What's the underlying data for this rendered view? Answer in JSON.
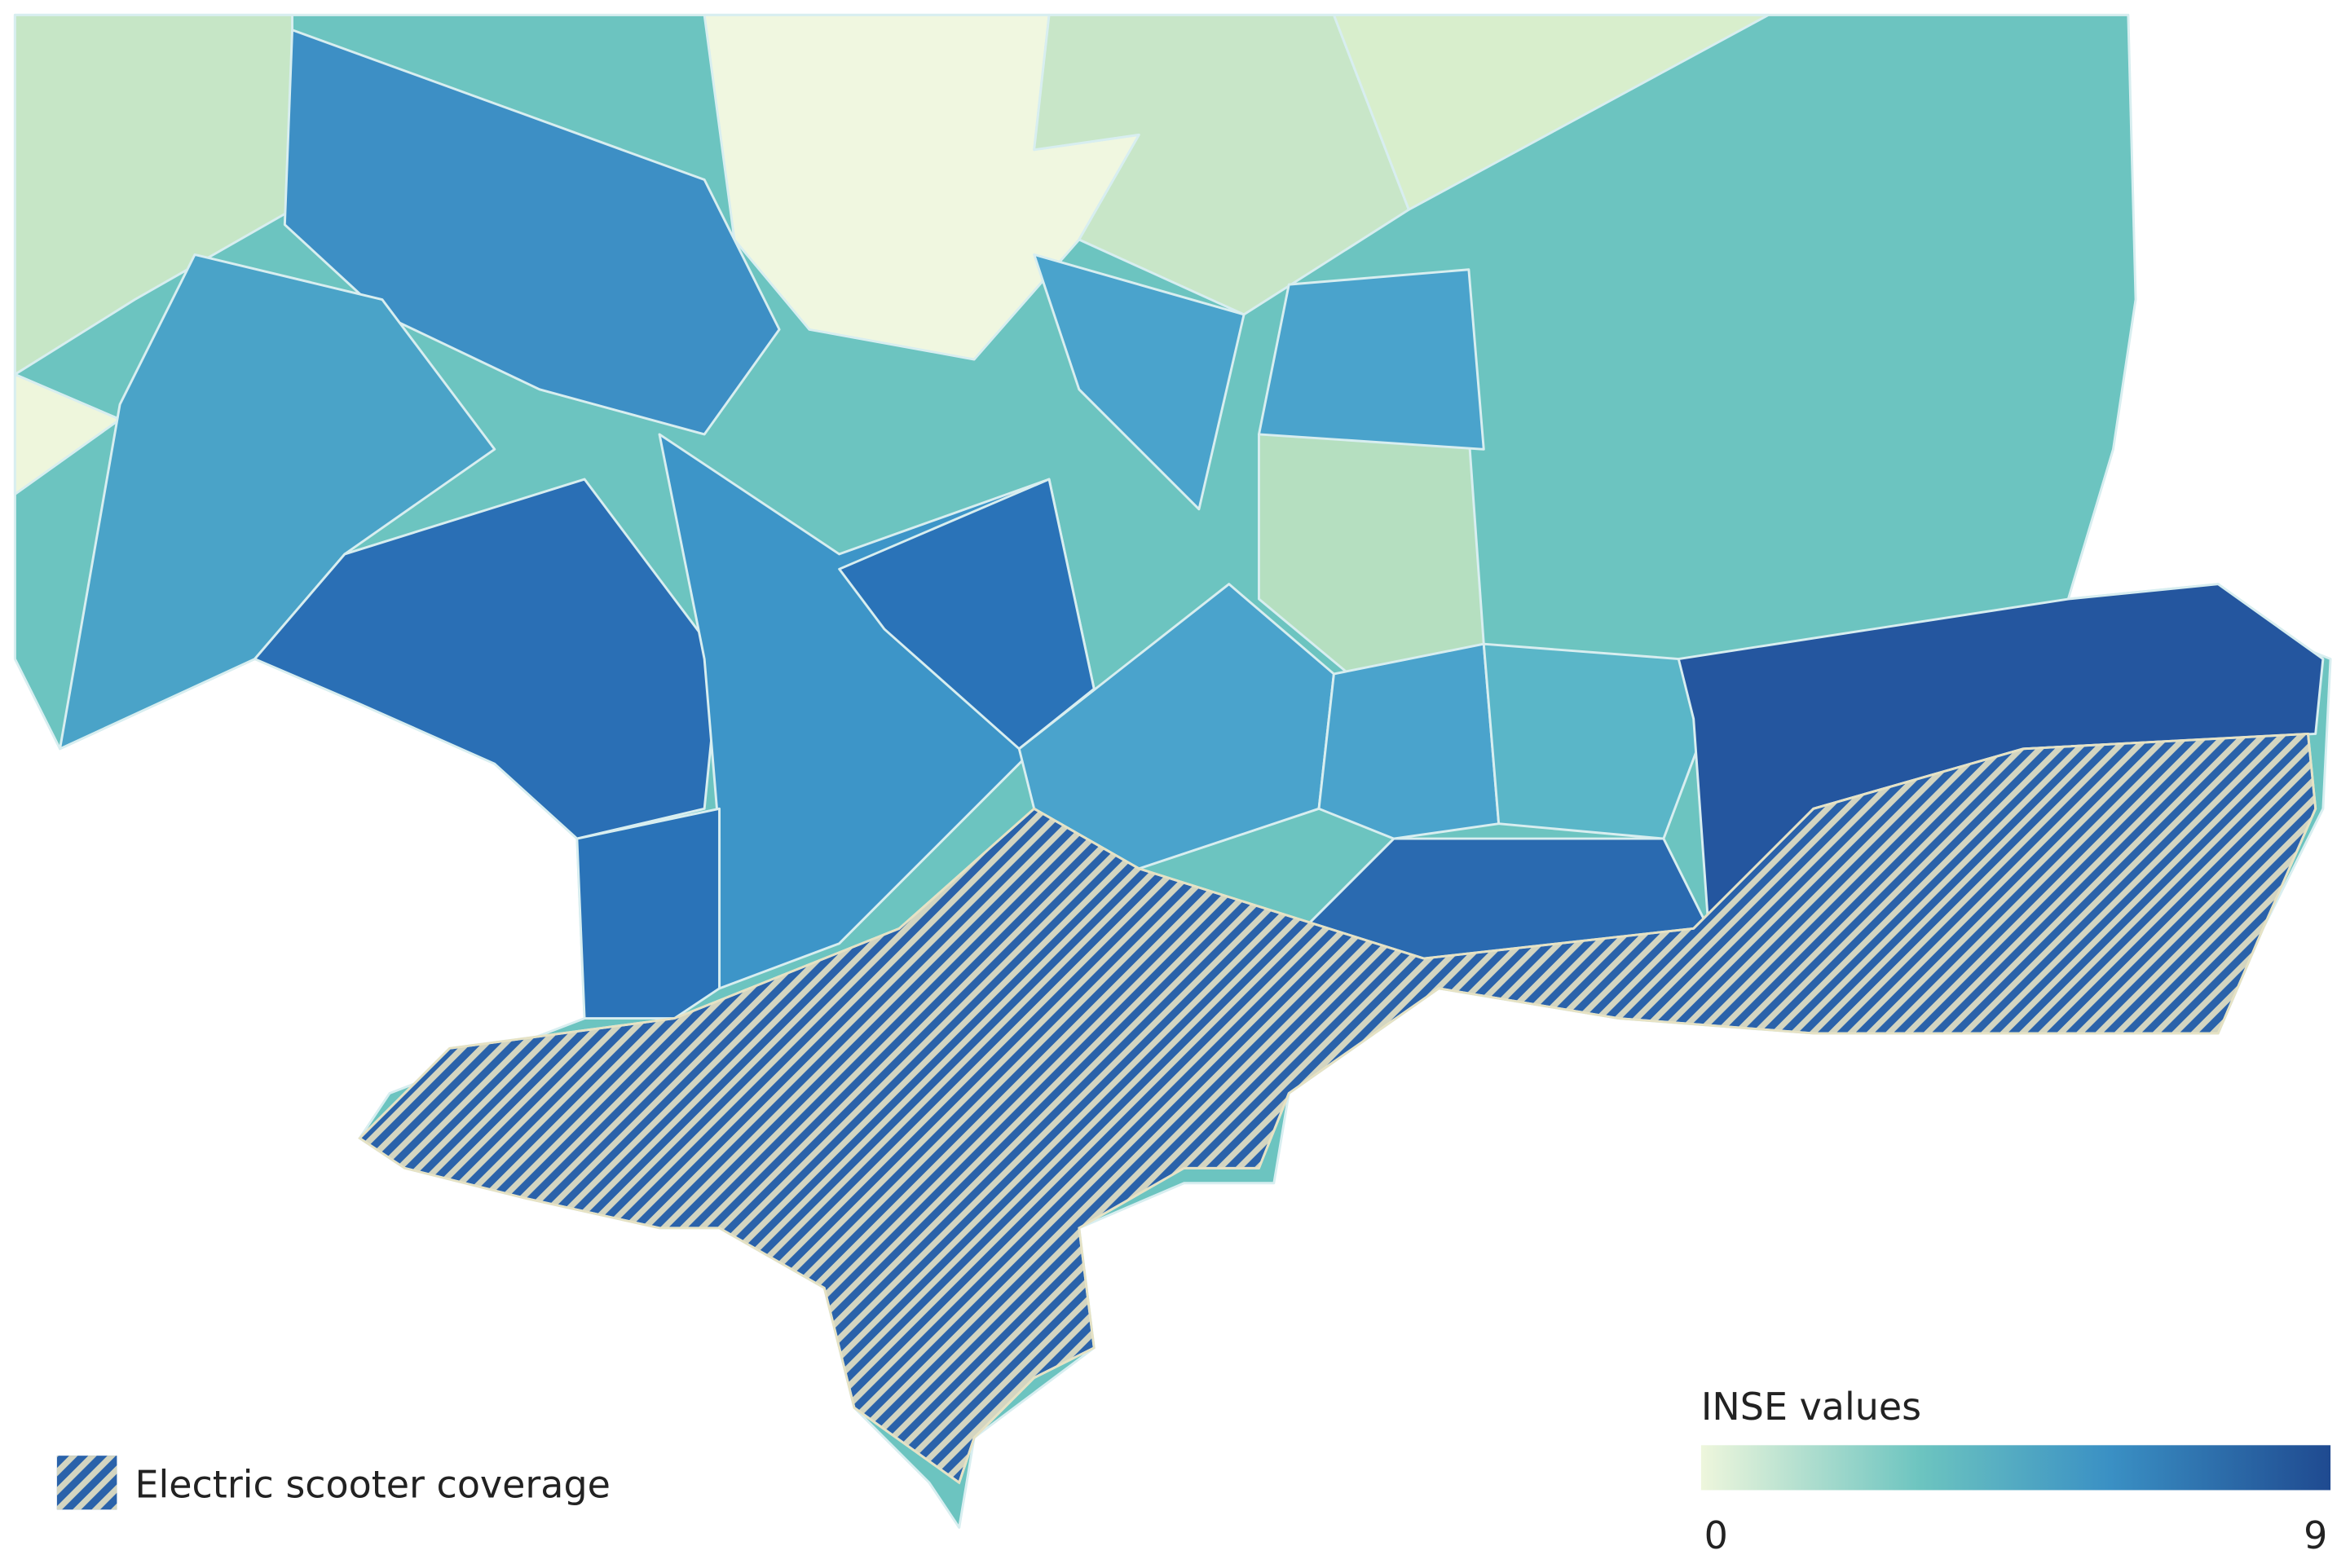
{
  "legend": {
    "coverage_label": "Electric scooter coverage",
    "scale_title": "INSE values",
    "scale_min": 0,
    "scale_max": 9
  }
}
